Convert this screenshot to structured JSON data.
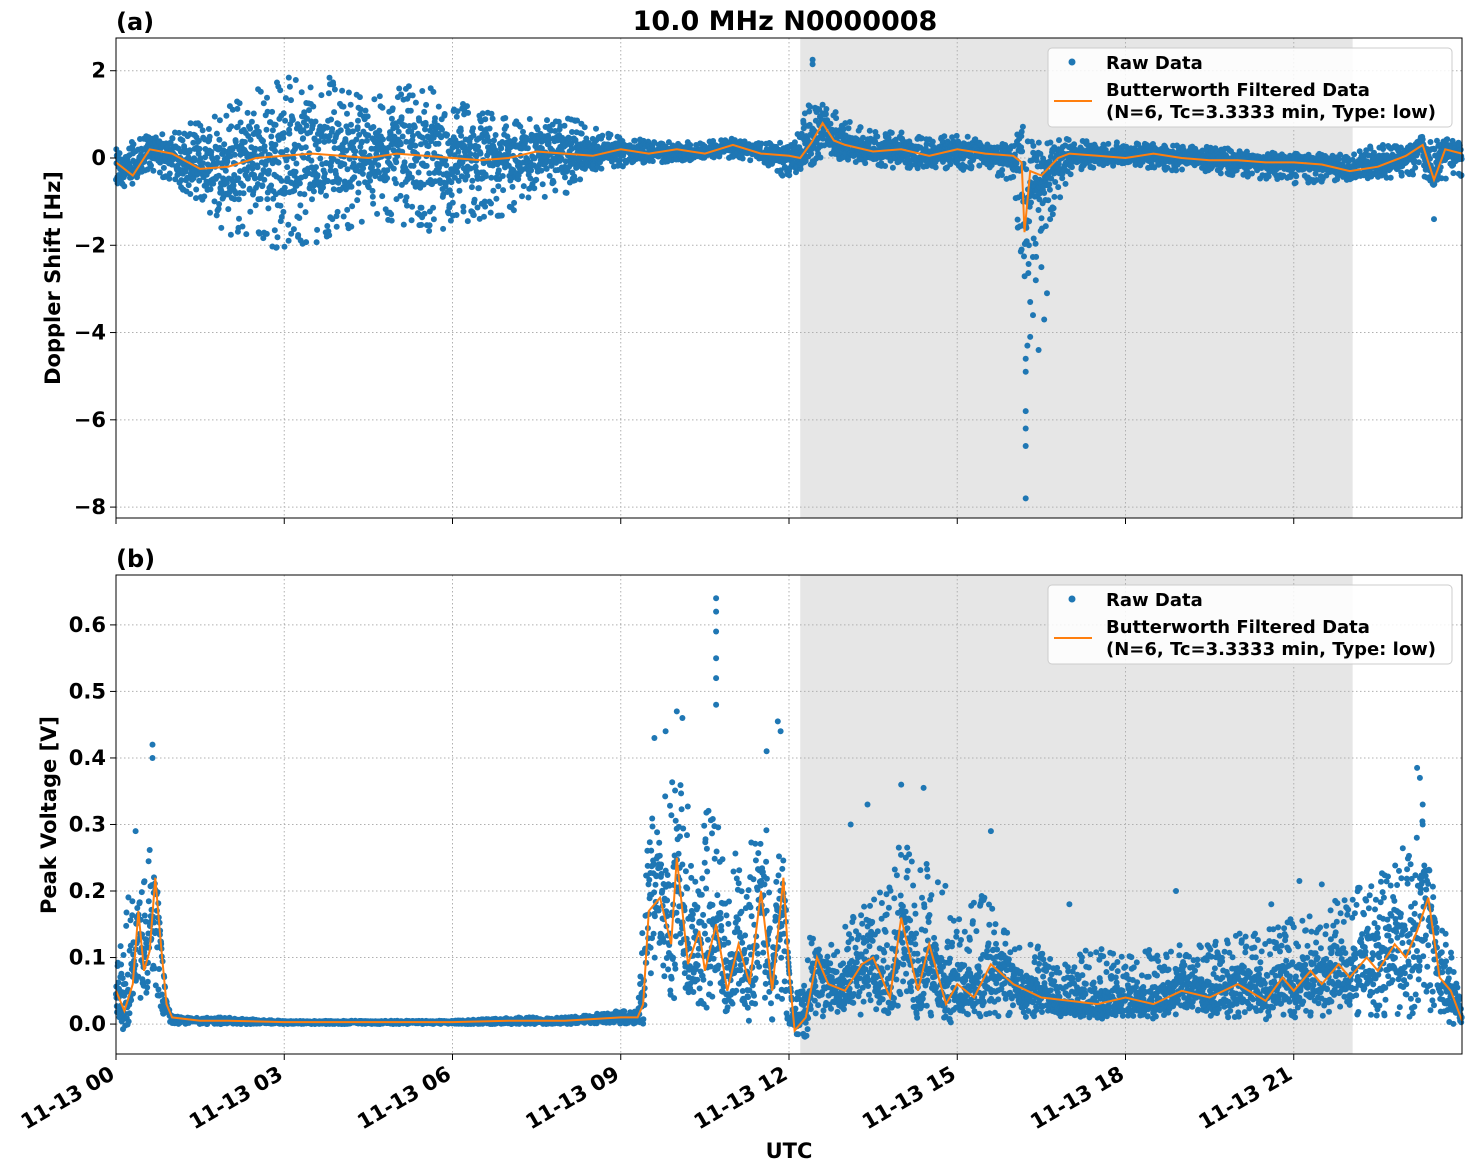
{
  "figure": {
    "title": "10.0 MHz N0000008",
    "xlabel": "UTC",
    "x_tick_labels": [
      "11-13 00",
      "11-13 03",
      "11-13 06",
      "11-13 09",
      "11-13 12",
      "11-13 15",
      "11-13 18",
      "11-13 21"
    ],
    "legend": {
      "raw_label": "Raw Data",
      "filtered_label_line1": "Butterworth Filtered Data",
      "filtered_label_line2": "(N=6, Tc=3.3333 min, Type: low)"
    },
    "colors": {
      "raw": "#1f77b4",
      "filtered": "#ff7f0e",
      "shade": "#e6e6e6"
    }
  },
  "chart_data": [
    {
      "panel_label": "(a)",
      "type": "scatter",
      "ylabel": "Doppler Shift [Hz]",
      "x_unit": "hours UTC since 2011-11-13 00:00",
      "xlim": [
        0,
        24
      ],
      "ylim": [
        -8.25,
        2.75
      ],
      "y_ticks": [
        -8,
        -6,
        -4,
        -2,
        0,
        2
      ],
      "y_tick_labels": [
        "−8",
        "−6",
        "−4",
        "−2",
        "0",
        "2"
      ],
      "grid": true,
      "legend_position": "upper-right",
      "shaded_region": [
        12.2,
        22.05
      ],
      "series": [
        {
          "name": "Raw Data",
          "style": "points",
          "envelope_x": [
            0,
            0.5,
            1,
            1.5,
            2,
            2.5,
            3,
            3.5,
            4,
            4.5,
            5,
            5.5,
            6,
            6.5,
            7,
            7.5,
            8,
            8.5,
            9,
            9.5,
            10,
            10.5,
            11,
            11.5,
            12,
            12.3,
            12.6,
            13,
            13.5,
            14,
            14.5,
            15,
            15.5,
            16,
            16.2,
            16.5,
            17,
            17.5,
            18,
            19,
            20,
            21,
            22,
            22.5,
            23,
            23.5,
            24
          ],
          "envelope_low": [
            -0.8,
            -0.3,
            -0.6,
            -1.0,
            -1.8,
            -2.0,
            -2.1,
            -2.0,
            -1.7,
            -1.6,
            -1.5,
            -1.7,
            -1.6,
            -1.4,
            -1.3,
            -0.9,
            -0.9,
            -0.3,
            -0.2,
            -0.1,
            -0.1,
            0.0,
            0.0,
            -0.1,
            -0.5,
            -0.3,
            0.0,
            -0.1,
            -0.2,
            -0.3,
            -0.2,
            -0.3,
            -0.2,
            -0.7,
            -3.0,
            -2.0,
            -0.4,
            -0.2,
            -0.2,
            -0.3,
            -0.4,
            -0.6,
            -0.5,
            -0.5,
            -0.4,
            -0.7,
            -0.4
          ],
          "envelope_high": [
            0.2,
            0.5,
            0.6,
            0.9,
            1.3,
            1.7,
            1.9,
            2.0,
            1.8,
            1.5,
            1.6,
            1.7,
            1.4,
            1.2,
            0.9,
            0.9,
            1.0,
            0.7,
            0.5,
            0.4,
            0.35,
            0.4,
            0.45,
            0.35,
            0.4,
            1.2,
            1.3,
            0.9,
            0.6,
            0.6,
            0.45,
            0.55,
            0.4,
            0.5,
            0.8,
            0.4,
            0.45,
            0.4,
            0.35,
            0.3,
            0.2,
            0.1,
            0.1,
            0.35,
            0.35,
            0.55,
            0.6
          ],
          "extremes": [
            {
              "x": 12.42,
              "y": 2.25
            },
            {
              "x": 12.42,
              "y": 2.15
            },
            {
              "x": 16.15,
              "y": 0.6
            },
            {
              "x": 16.22,
              "y": -7.8
            },
            {
              "x": 16.22,
              "y": -6.6
            },
            {
              "x": 16.22,
              "y": -6.2
            },
            {
              "x": 16.22,
              "y": -5.8
            },
            {
              "x": 16.22,
              "y": -4.9
            },
            {
              "x": 16.22,
              "y": -4.6
            },
            {
              "x": 16.3,
              "y": -4.1
            },
            {
              "x": 16.35,
              "y": -3.6
            },
            {
              "x": 16.45,
              "y": -4.4
            },
            {
              "x": 16.55,
              "y": -3.7
            },
            {
              "x": 16.6,
              "y": -3.1
            },
            {
              "x": 16.4,
              "y": -2.8
            },
            {
              "x": 16.5,
              "y": -2.5
            },
            {
              "x": 16.3,
              "y": -3.3
            },
            {
              "x": 16.25,
              "y": -4.3
            },
            {
              "x": 23.5,
              "y": -1.4
            }
          ]
        },
        {
          "name": "Butterworth Filtered Data (N=6, Tc=3.3333 min, Type: low)",
          "style": "line",
          "x": [
            0,
            0.3,
            0.6,
            1,
            1.5,
            2,
            2.5,
            3,
            3.5,
            4,
            4.5,
            5,
            5.5,
            6,
            6.5,
            7,
            7.5,
            8,
            8.5,
            9,
            9.5,
            10,
            10.5,
            11,
            11.5,
            12,
            12.2,
            12.4,
            12.6,
            12.8,
            13,
            13.5,
            14,
            14.5,
            15,
            15.5,
            16,
            16.15,
            16.2,
            16.3,
            16.5,
            16.8,
            17,
            17.5,
            18,
            18.5,
            19,
            19.5,
            20,
            20.5,
            21,
            21.5,
            22,
            22.5,
            23,
            23.3,
            23.5,
            23.7,
            24
          ],
          "y": [
            -0.1,
            -0.4,
            0.2,
            0.1,
            -0.25,
            -0.2,
            0.0,
            0.05,
            0.1,
            0.05,
            0.0,
            0.1,
            0.05,
            0.0,
            -0.05,
            0.0,
            0.15,
            0.1,
            0.05,
            0.2,
            0.1,
            0.2,
            0.1,
            0.3,
            0.1,
            0.05,
            0.0,
            0.35,
            0.8,
            0.4,
            0.3,
            0.15,
            0.2,
            0.05,
            0.2,
            0.1,
            0.05,
            -0.1,
            -1.7,
            -0.3,
            -0.4,
            0.0,
            0.1,
            0.05,
            0.0,
            0.1,
            0.0,
            -0.05,
            -0.05,
            -0.1,
            -0.1,
            -0.15,
            -0.3,
            -0.2,
            0.05,
            0.3,
            -0.5,
            0.2,
            0.1
          ]
        }
      ]
    },
    {
      "panel_label": "(b)",
      "type": "scatter",
      "ylabel": "Peak Voltage [V]",
      "x_unit": "hours UTC since 2011-11-13 00:00",
      "xlim": [
        0,
        24
      ],
      "ylim": [
        -0.045,
        0.675
      ],
      "y_ticks": [
        0.0,
        0.1,
        0.2,
        0.3,
        0.4,
        0.5,
        0.6
      ],
      "y_tick_labels": [
        "0.0",
        "0.1",
        "0.2",
        "0.3",
        "0.4",
        "0.5",
        "0.6"
      ],
      "grid": true,
      "legend_position": "upper-right",
      "shaded_region": [
        12.2,
        22.05
      ],
      "series": [
        {
          "name": "Raw Data",
          "style": "points",
          "envelope_x": [
            0,
            0.2,
            0.4,
            0.6,
            0.8,
            1.0,
            1.5,
            2,
            3,
            4,
            5,
            6,
            7,
            8,
            9,
            9.3,
            9.5,
            9.8,
            10,
            10.3,
            10.6,
            10.9,
            11.2,
            11.5,
            11.8,
            12.0,
            12.1,
            12.3,
            12.6,
            13,
            13.5,
            14,
            14.5,
            15,
            15.5,
            16,
            16.5,
            17,
            17.5,
            18,
            18.5,
            19,
            19.5,
            20,
            20.5,
            21,
            21.5,
            22,
            22.5,
            23,
            23.3,
            23.5,
            23.8,
            24
          ],
          "envelope_low": [
            0.0,
            0.02,
            0.03,
            0.04,
            0.02,
            0.0,
            0.0,
            0.0,
            0.0,
            0.0,
            0.0,
            0.0,
            0.0,
            0.0,
            0.0,
            0.0,
            0.04,
            0.03,
            0.03,
            0.02,
            0.03,
            0.02,
            0.02,
            0.02,
            0.02,
            0.0,
            0.0,
            0.0,
            0.01,
            0.01,
            0.01,
            0.02,
            0.01,
            0.01,
            0.01,
            0.01,
            0.01,
            0.01,
            0.01,
            0.01,
            0.01,
            0.01,
            0.01,
            0.01,
            0.01,
            0.01,
            0.01,
            0.01,
            0.01,
            0.01,
            0.01,
            0.01,
            0.0,
            0.0
          ],
          "envelope_high": [
            0.1,
            0.2,
            0.18,
            0.28,
            0.05,
            0.01,
            0.01,
            0.01,
            0.005,
            0.005,
            0.005,
            0.005,
            0.01,
            0.01,
            0.02,
            0.02,
            0.3,
            0.38,
            0.4,
            0.3,
            0.35,
            0.25,
            0.3,
            0.28,
            0.32,
            0.0,
            0.02,
            0.15,
            0.1,
            0.15,
            0.2,
            0.28,
            0.25,
            0.18,
            0.2,
            0.12,
            0.12,
            0.1,
            0.12,
            0.1,
            0.12,
            0.12,
            0.12,
            0.14,
            0.14,
            0.16,
            0.18,
            0.2,
            0.22,
            0.28,
            0.32,
            0.2,
            0.12,
            0.02
          ],
          "extremes": [
            {
              "x": 0.65,
              "y": 0.42
            },
            {
              "x": 0.65,
              "y": 0.4
            },
            {
              "x": 0.35,
              "y": 0.29
            },
            {
              "x": 10.7,
              "y": 0.64
            },
            {
              "x": 10.7,
              "y": 0.62
            },
            {
              "x": 10.7,
              "y": 0.59
            },
            {
              "x": 10.7,
              "y": 0.55
            },
            {
              "x": 10.7,
              "y": 0.52
            },
            {
              "x": 10.7,
              "y": 0.48
            },
            {
              "x": 10.0,
              "y": 0.47
            },
            {
              "x": 10.1,
              "y": 0.46
            },
            {
              "x": 9.8,
              "y": 0.44
            },
            {
              "x": 9.6,
              "y": 0.43
            },
            {
              "x": 11.8,
              "y": 0.455
            },
            {
              "x": 11.85,
              "y": 0.44
            },
            {
              "x": 11.6,
              "y": 0.41
            },
            {
              "x": 13.1,
              "y": 0.3
            },
            {
              "x": 13.4,
              "y": 0.33
            },
            {
              "x": 14.0,
              "y": 0.36
            },
            {
              "x": 14.4,
              "y": 0.355
            },
            {
              "x": 15.6,
              "y": 0.29
            },
            {
              "x": 17.0,
              "y": 0.18
            },
            {
              "x": 18.9,
              "y": 0.2
            },
            {
              "x": 20.6,
              "y": 0.18
            },
            {
              "x": 21.1,
              "y": 0.215
            },
            {
              "x": 21.5,
              "y": 0.21
            },
            {
              "x": 23.2,
              "y": 0.385
            },
            {
              "x": 23.25,
              "y": 0.37
            },
            {
              "x": 23.3,
              "y": 0.33
            },
            {
              "x": 23.3,
              "y": 0.3
            }
          ]
        },
        {
          "name": "Butterworth Filtered Data (N=6, Tc=3.3333 min, Type: low)",
          "style": "line",
          "x": [
            0,
            0.15,
            0.3,
            0.4,
            0.5,
            0.6,
            0.7,
            0.8,
            0.9,
            1.0,
            1.5,
            2,
            3,
            4,
            5,
            6,
            7,
            8,
            9,
            9.3,
            9.4,
            9.5,
            9.7,
            9.9,
            10.0,
            10.2,
            10.4,
            10.5,
            10.7,
            10.9,
            11.1,
            11.3,
            11.5,
            11.7,
            11.9,
            12.0,
            12.1,
            12.3,
            12.5,
            12.7,
            13,
            13.3,
            13.5,
            13.8,
            14,
            14.3,
            14.5,
            14.8,
            15,
            15.3,
            15.6,
            16,
            16.5,
            17,
            17.5,
            18,
            18.5,
            19,
            19.5,
            20,
            20.5,
            20.8,
            21,
            21.3,
            21.5,
            21.8,
            22,
            22.3,
            22.5,
            22.8,
            23,
            23.2,
            23.4,
            23.6,
            23.8,
            24
          ],
          "y": [
            0.05,
            0.02,
            0.06,
            0.17,
            0.08,
            0.11,
            0.22,
            0.12,
            0.03,
            0.01,
            0.005,
            0.005,
            0.003,
            0.003,
            0.003,
            0.003,
            0.005,
            0.005,
            0.01,
            0.01,
            0.03,
            0.17,
            0.19,
            0.12,
            0.25,
            0.09,
            0.14,
            0.08,
            0.15,
            0.05,
            0.12,
            0.06,
            0.2,
            0.05,
            0.22,
            0.08,
            -0.01,
            0.01,
            0.1,
            0.06,
            0.05,
            0.09,
            0.1,
            0.04,
            0.16,
            0.05,
            0.12,
            0.03,
            0.06,
            0.04,
            0.09,
            0.06,
            0.04,
            0.035,
            0.03,
            0.04,
            0.03,
            0.05,
            0.04,
            0.06,
            0.035,
            0.07,
            0.05,
            0.08,
            0.06,
            0.09,
            0.07,
            0.1,
            0.08,
            0.12,
            0.1,
            0.14,
            0.19,
            0.07,
            0.05,
            0.005
          ]
        }
      ]
    }
  ]
}
